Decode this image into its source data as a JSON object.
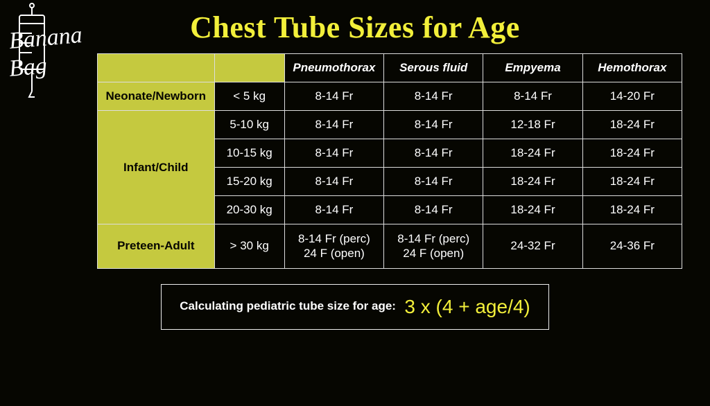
{
  "colors": {
    "background": "#060601",
    "accent_yellow": "#f2ef3a",
    "header_olive": "#c5c93f",
    "text_white": "#ffffff",
    "border": "#dddddd"
  },
  "fonts": {
    "title_family": "Georgia, serif",
    "body_family": "Arial, sans-serif",
    "title_size_pt": 33,
    "header_size_pt": 13,
    "cell_size_pt": 13,
    "formula_label_size_pt": 13,
    "formula_expr_size_pt": 21
  },
  "logo_text": "Banana Bag",
  "title": "Chest Tube Sizes for Age",
  "table": {
    "columns": [
      "",
      "",
      "Pneumothorax",
      "Serous fluid",
      "Empyema",
      "Hemothorax"
    ],
    "col_widths_pct": [
      20,
      12,
      17,
      17,
      17,
      17
    ],
    "rows": [
      {
        "group": "Neonate/Newborn",
        "weight": "< 5 kg",
        "pneumothorax": "8-14 Fr",
        "serous": "8-14 Fr",
        "empyema": "8-14 Fr",
        "hemothorax": "14-20 Fr"
      },
      {
        "group": "Infant/Child",
        "weight": "5-10 kg",
        "pneumothorax": "8-14 Fr",
        "serous": "8-14 Fr",
        "empyema": "12-18 Fr",
        "hemothorax": "18-24 Fr"
      },
      {
        "group": "Infant/Child",
        "weight": "10-15 kg",
        "pneumothorax": "8-14 Fr",
        "serous": "8-14 Fr",
        "empyema": "18-24 Fr",
        "hemothorax": "18-24 Fr"
      },
      {
        "group": "Infant/Child",
        "weight": "15-20 kg",
        "pneumothorax": "8-14 Fr",
        "serous": "8-14 Fr",
        "empyema": "18-24 Fr",
        "hemothorax": "18-24 Fr"
      },
      {
        "group": "Infant/Child",
        "weight": "20-30 kg",
        "pneumothorax": "8-14 Fr",
        "serous": "8-14 Fr",
        "empyema": "18-24 Fr",
        "hemothorax": "18-24 Fr"
      },
      {
        "group": "Preteen-Adult",
        "weight": "> 30 kg",
        "pneumothorax": "8-14 Fr (perc)\n24 F (open)",
        "serous": "8-14 Fr (perc)\n24 F (open)",
        "empyema": "24-32 Fr",
        "hemothorax": "24-36 Fr"
      }
    ],
    "group_spans": [
      {
        "label": "Neonate/Newborn",
        "span": 1
      },
      {
        "label": "Infant/Child",
        "span": 4
      },
      {
        "label": "Preteen-Adult",
        "span": 1
      }
    ]
  },
  "formula": {
    "label": "Calculating pediatric tube size for age:",
    "expr": "3 x (4 + age/4)"
  }
}
